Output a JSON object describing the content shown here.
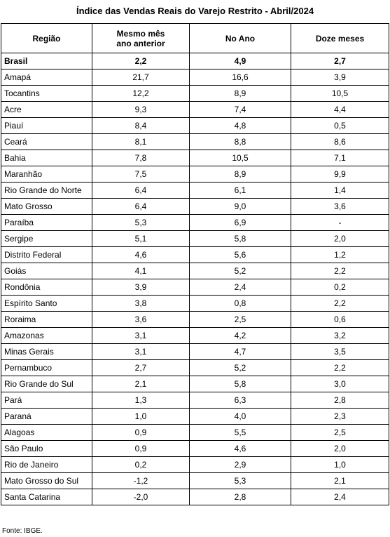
{
  "title": "Índice das Vendas Reais do Varejo Restrito - Abril/2024",
  "table": {
    "header": [
      "Região",
      "Mesmo mês\nano anterior",
      "No Ano",
      "Doze meses"
    ],
    "rows": [
      [
        "Brasil",
        "2,2",
        "4,9",
        "2,7"
      ],
      [
        "Amapá",
        "21,7",
        "16,6",
        "3,9"
      ],
      [
        "Tocantins",
        "12,2",
        "8,9",
        "10,5"
      ],
      [
        "Acre",
        "9,3",
        "7,4",
        "4,4"
      ],
      [
        "Piauí",
        "8,4",
        "4,8",
        "0,5"
      ],
      [
        "Ceará",
        "8,1",
        "8,8",
        "8,6"
      ],
      [
        "Bahia",
        "7,8",
        "10,5",
        "7,1"
      ],
      [
        "Maranhão",
        "7,5",
        "8,9",
        "9,9"
      ],
      [
        "Rio Grande do Norte",
        "6,4",
        "6,1",
        "1,4"
      ],
      [
        "Mato Grosso",
        "6,4",
        "9,0",
        "3,6"
      ],
      [
        "Paraíba",
        "5,3",
        "6,9",
        "-"
      ],
      [
        "Sergipe",
        "5,1",
        "5,8",
        "2,0"
      ],
      [
        "Distrito Federal",
        "4,6",
        "5,6",
        "1,2"
      ],
      [
        "Goiás",
        "4,1",
        "5,2",
        "2,2"
      ],
      [
        "Rondônia",
        "3,9",
        "2,4",
        "0,2"
      ],
      [
        "Espírito Santo",
        "3,8",
        "0,8",
        "2,2"
      ],
      [
        "Roraima",
        "3,6",
        "2,5",
        "0,6"
      ],
      [
        "Amazonas",
        "3,1",
        "4,2",
        "3,2"
      ],
      [
        "Minas Gerais",
        "3,1",
        "4,7",
        "3,5"
      ],
      [
        "Pernambuco",
        "2,7",
        "5,2",
        "2,2"
      ],
      [
        "Rio Grande do Sul",
        "2,1",
        "5,8",
        "3,0"
      ],
      [
        "Pará",
        "1,3",
        "6,3",
        "2,8"
      ],
      [
        "Paraná",
        "1,0",
        "4,0",
        "2,3"
      ],
      [
        "Alagoas",
        "0,9",
        "5,5",
        "2,5"
      ],
      [
        "São Paulo",
        "0,9",
        "4,6",
        "2,0"
      ],
      [
        "Rio de Janeiro",
        "0,2",
        "2,9",
        "1,0"
      ],
      [
        "Mato Grosso do Sul",
        "-1,2",
        "5,3",
        "2,1"
      ],
      [
        "Santa Catarina",
        "-2,0",
        "2,8",
        "2,4"
      ]
    ]
  },
  "source": "Fonte: IBGE."
}
